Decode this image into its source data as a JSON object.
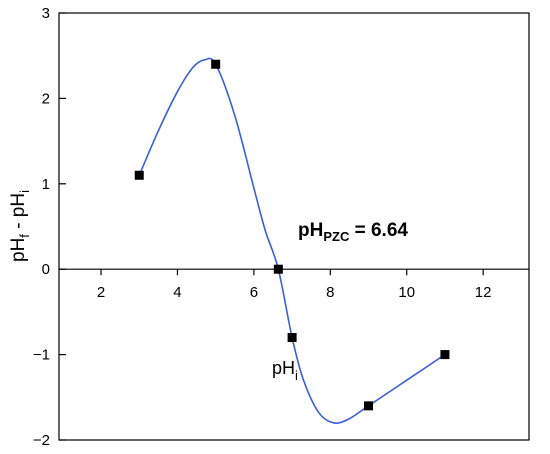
{
  "chart_data": {
    "type": "line",
    "xlabel": {
      "base": "pH",
      "sub": "i"
    },
    "ylabel": {
      "p1": "pH",
      "s1": "f",
      "mid": " - pH",
      "s2": "i"
    },
    "annotation": {
      "base": "pH",
      "sub": "PZC",
      "rest": " = 6.64"
    },
    "xlim": [
      0.9,
      13.2
    ],
    "ylim": [
      -2,
      3
    ],
    "x_ticks": [
      2,
      4,
      6,
      8,
      10,
      12
    ],
    "x_tick_labels": [
      "2",
      "4",
      "6",
      "8",
      "10",
      "12"
    ],
    "y_ticks": [
      -2,
      -1,
      0,
      1,
      2,
      3
    ],
    "y_tick_labels": [
      "−2",
      "−1",
      "0",
      "1",
      "2",
      "3"
    ],
    "grid": false,
    "series": [
      {
        "points": [
          {
            "x": 3,
            "y": 1.1
          },
          {
            "x": 5,
            "y": 2.4
          },
          {
            "x": 6.64,
            "y": 0
          },
          {
            "x": 7,
            "y": -0.8
          },
          {
            "x": 9,
            "y": -1.6
          },
          {
            "x": 11,
            "y": -1.0
          }
        ],
        "curve": [
          [
            3,
            1.1
          ],
          [
            3.5,
            1.62
          ],
          [
            4,
            2.08
          ],
          [
            4.4,
            2.36
          ],
          [
            4.7,
            2.45
          ],
          [
            5,
            2.4
          ],
          [
            5.5,
            1.8
          ],
          [
            6,
            0.95
          ],
          [
            6.3,
            0.45
          ],
          [
            6.64,
            0
          ],
          [
            7,
            -0.8
          ],
          [
            7.3,
            -1.3
          ],
          [
            7.7,
            -1.68
          ],
          [
            8.1,
            -1.8
          ],
          [
            8.5,
            -1.75
          ],
          [
            9,
            -1.6
          ],
          [
            10,
            -1.3
          ],
          [
            11,
            -1.0
          ]
        ],
        "color": "#3b5fd9",
        "marker_color": "#000000"
      }
    ]
  }
}
